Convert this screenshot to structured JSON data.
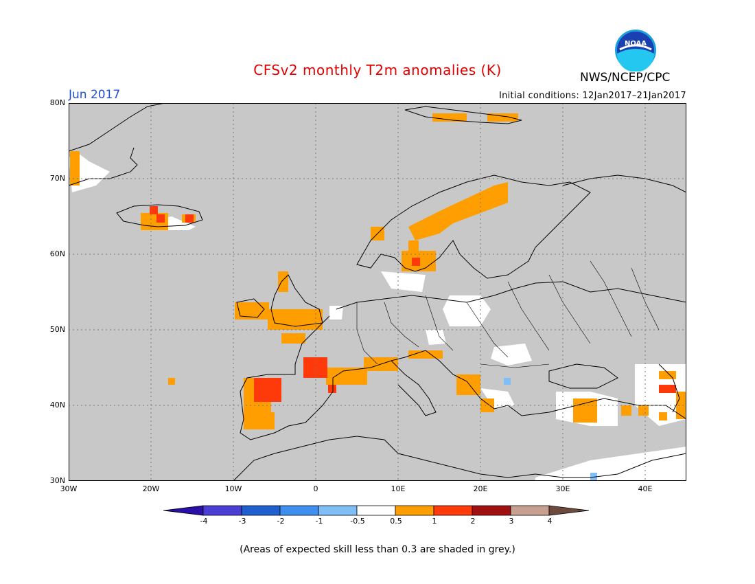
{
  "title": "CFSv2 monthly T2m anomalies (K)",
  "agency": "NWS/NCEP/CPC",
  "logo_text": "NOAA",
  "month": "Jun 2017",
  "initial_conditions": "Initial conditions: 12Jan2017–21Jan2017",
  "footnote": "(Areas of expected skill less than 0.3 are shaded in grey.)",
  "map": {
    "lon_range": [
      -30,
      45
    ],
    "lat_range": [
      30,
      80
    ],
    "lat_labels": [
      "30N",
      "40N",
      "50N",
      "60N",
      "70N",
      "80N"
    ],
    "lon_labels": [
      "30W",
      "20W",
      "10W",
      "0",
      "10E",
      "20E",
      "30E",
      "40E"
    ],
    "grid": true,
    "background_color": "#c8c8c8"
  },
  "colorbar": {
    "labels": [
      "-4",
      "-3",
      "-2",
      "-1",
      "-0.5",
      "0.5",
      "1",
      "2",
      "3",
      "4"
    ],
    "colors": [
      "#2a0fa8",
      "#4a3ed4",
      "#1f5fd0",
      "#3f8ff0",
      "#7fbff5",
      "#ffffff",
      "#ff9e00",
      "#ff3a0a",
      "#a01010",
      "#c8a090",
      "#6e4a3e"
    ]
  }
}
